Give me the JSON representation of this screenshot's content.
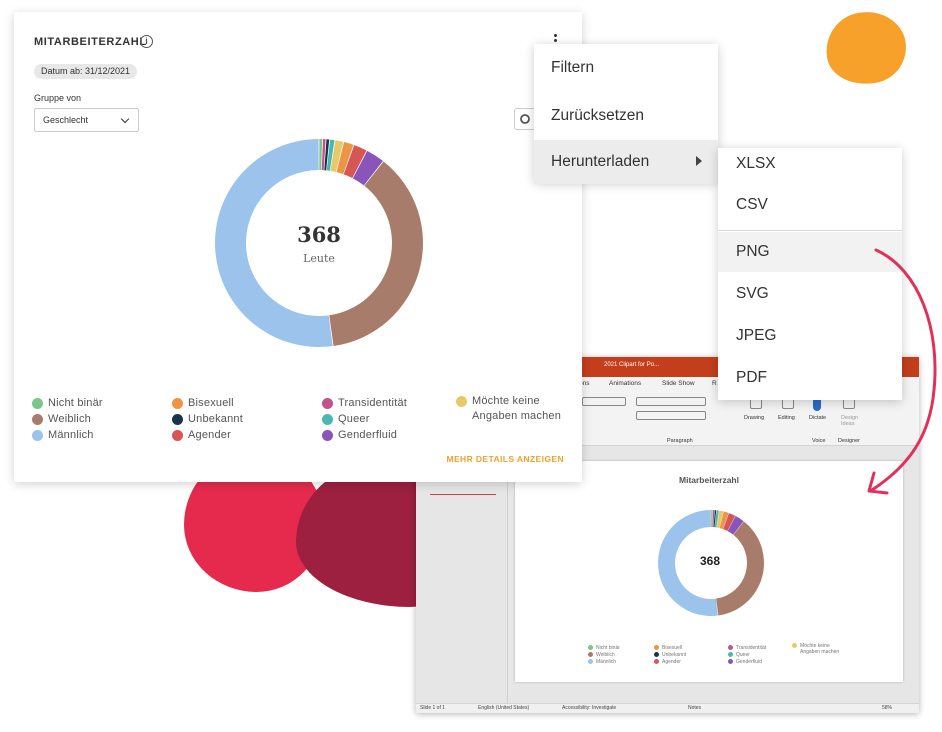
{
  "widget": {
    "title": "MITARBEITERZAHL",
    "date_chip": "Datum ab: 31/12/2021",
    "group_label": "Gruppe von",
    "group_value": "Geschlecht",
    "total": "368",
    "total_unit": "Leute",
    "more_link": "MEHR DETAILS ANZEIGEN"
  },
  "chart_data": {
    "type": "pie",
    "total": 368,
    "categories": [
      "Nicht binär",
      "Bisexuell",
      "Transidentität",
      "Möchte keine Angaben machen",
      "Weiblich",
      "Unbekannt",
      "Queer",
      "Männlich",
      "Agender",
      "Genderfluid"
    ],
    "colors": [
      "#7cc48a",
      "#ee9446",
      "#c25289",
      "#e8c96a",
      "#a87c6a",
      "#17344f",
      "#4bb8b0",
      "#9cc3ec",
      "#d65653",
      "#8a55bb"
    ],
    "slices": [
      {
        "label": "Nicht binär",
        "value": 2
      },
      {
        "label": "Transidentität",
        "value": 2
      },
      {
        "label": "Unbekannt",
        "value": 2
      },
      {
        "label": "Queer",
        "value": 3
      },
      {
        "label": "Möchte keine Angaben machen",
        "value": 5
      },
      {
        "label": "Bisexuell",
        "value": 6
      },
      {
        "label": "Agender",
        "value": 8
      },
      {
        "label": "Genderfluid",
        "value": 11
      },
      {
        "label": "Weiblich",
        "value": 137
      },
      {
        "label": "Männlich",
        "value": 192
      }
    ]
  },
  "legend": [
    {
      "label": "Nicht binär",
      "color": "#7cc48a"
    },
    {
      "label": "Weiblich",
      "color": "#a87c6a"
    },
    {
      "label": "Männlich",
      "color": "#9cc3ec"
    },
    {
      "label": "Bisexuell",
      "color": "#ee9446"
    },
    {
      "label": "Unbekannt",
      "color": "#17344f"
    },
    {
      "label": "Agender",
      "color": "#d65653"
    },
    {
      "label": "Transidentität",
      "color": "#c25289"
    },
    {
      "label": "Queer",
      "color": "#4bb8b0"
    },
    {
      "label": "Genderfluid",
      "color": "#8a55bb"
    },
    {
      "label": "Möchte keine Angaben machen",
      "color": "#e8c96a"
    }
  ],
  "menu": {
    "items": [
      "Filtern",
      "Zurücksetzen",
      "Herunterladen"
    ],
    "download_formats": [
      "XLSX",
      "CSV",
      "PNG",
      "SVG",
      "JPEG",
      "PDF"
    ]
  },
  "ppt": {
    "window_title": "2021 Clipart for Po...",
    "tabs": [
      "ons",
      "Animations",
      "Slide Show",
      "R"
    ],
    "ribbon_groups": [
      "Paragraph",
      "Drawing",
      "Editing",
      "Dictate",
      "Design Ideas",
      "Voice",
      "Designer"
    ],
    "slide_title": "Mitarbeiterzahl",
    "slide_total": "368",
    "status": [
      "Slide 1 of 1",
      "English (United States)",
      "Accessibility: Investigate",
      "Notes",
      "58%"
    ]
  },
  "colors": {
    "accent_link": "#f2a12e",
    "ppt_brand": "#c43e1c",
    "arrow": "#e0315a"
  }
}
